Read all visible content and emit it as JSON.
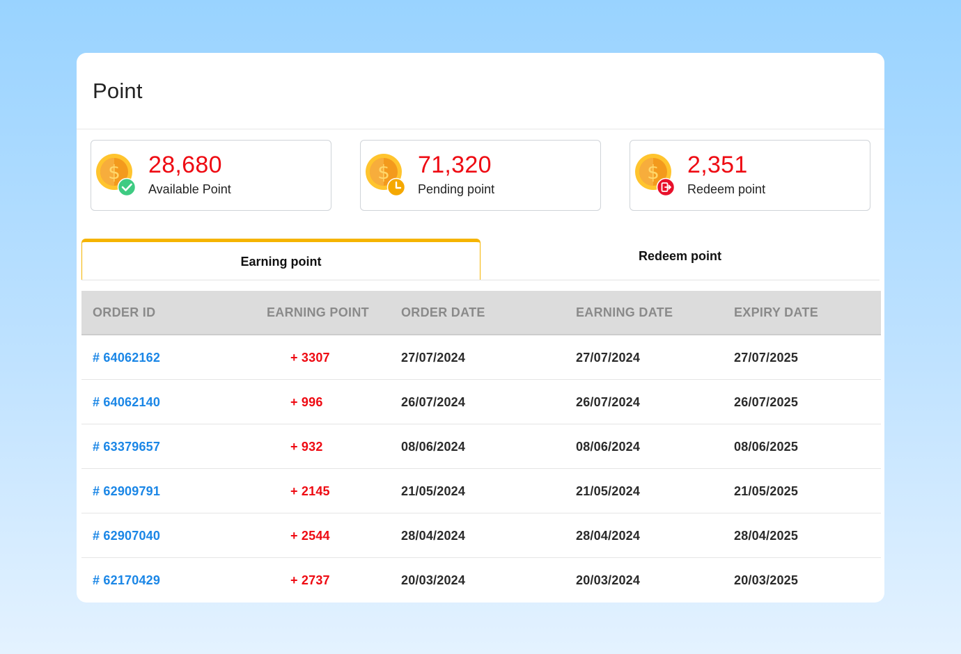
{
  "page": {
    "title": "Point"
  },
  "stats": [
    {
      "value": "28,680",
      "label": "Available Point",
      "badge_icon": "check-badge-icon",
      "badge_color": "#3ecb82"
    },
    {
      "value": "71,320",
      "label": "Pending point",
      "badge_icon": "clock-badge-icon",
      "badge_color": "#f5a800"
    },
    {
      "value": "2,351",
      "label": "Redeem point",
      "badge_icon": "redeem-badge-icon",
      "badge_color": "#e8102b"
    }
  ],
  "tabs": [
    {
      "label": "Earning point",
      "active": true
    },
    {
      "label": "Redeem point",
      "active": false
    }
  ],
  "table": {
    "headers": [
      "ORDER ID",
      "EARNING POINT",
      "ORDER DATE",
      "EARNING DATE",
      "EXPIRY DATE"
    ],
    "rows": [
      {
        "order_id": "# 64062162",
        "points": "+ 3307",
        "order_date": "27/07/2024",
        "earning_date": "27/07/2024",
        "expiry_date": "27/07/2025"
      },
      {
        "order_id": "# 64062140",
        "points": "+ 996",
        "order_date": "26/07/2024",
        "earning_date": "26/07/2024",
        "expiry_date": "26/07/2025"
      },
      {
        "order_id": "# 63379657",
        "points": "+ 932",
        "order_date": "08/06/2024",
        "earning_date": "08/06/2024",
        "expiry_date": "08/06/2025"
      },
      {
        "order_id": "# 62909791",
        "points": "+ 2145",
        "order_date": "21/05/2024",
        "earning_date": "21/05/2024",
        "expiry_date": "21/05/2025"
      },
      {
        "order_id": "# 62907040",
        "points": "+ 2544",
        "order_date": "28/04/2024",
        "earning_date": "28/04/2024",
        "expiry_date": "28/04/2025"
      },
      {
        "order_id": "# 62170429",
        "points": "+ 2737",
        "order_date": "20/03/2024",
        "earning_date": "20/03/2024",
        "expiry_date": "20/03/2025"
      }
    ]
  },
  "colors": {
    "accent_tab": "#f5b400",
    "points_red": "#ee0a12",
    "link_blue": "#1a86e6"
  }
}
